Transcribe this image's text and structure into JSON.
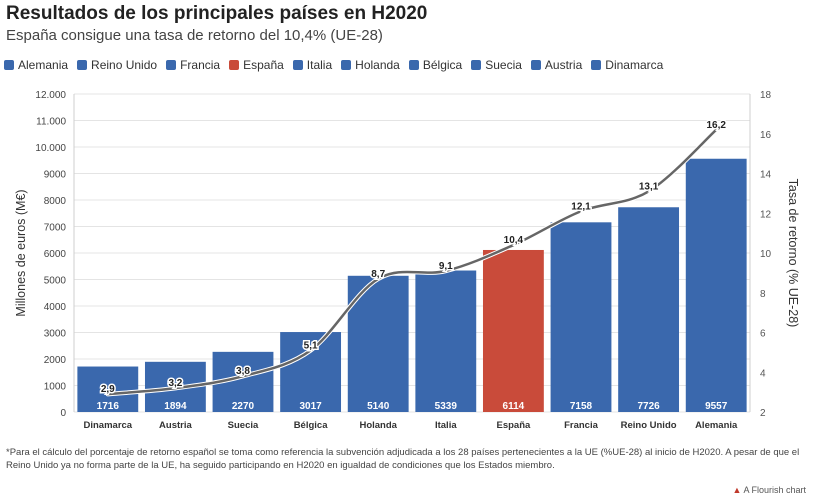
{
  "header": {
    "title": "Resultados de los principales países en H2020",
    "subtitle": "España consigue una tasa de retorno del 10,4% (UE-28)"
  },
  "legend": [
    {
      "label": "Alemania",
      "color": "#3a68ad"
    },
    {
      "label": "Reino Unido",
      "color": "#3a68ad"
    },
    {
      "label": "Francia",
      "color": "#3a68ad"
    },
    {
      "label": "España",
      "color": "#c94b3a"
    },
    {
      "label": "Italia",
      "color": "#3a68ad"
    },
    {
      "label": "Holanda",
      "color": "#3a68ad"
    },
    {
      "label": "Bélgica",
      "color": "#3a68ad"
    },
    {
      "label": "Suecia",
      "color": "#3a68ad"
    },
    {
      "label": "Austria",
      "color": "#3a68ad"
    },
    {
      "label": "Dinamarca",
      "color": "#3a68ad"
    }
  ],
  "chart_data": {
    "type": "bar",
    "categories": [
      "Dinamarca",
      "Austria",
      "Suecia",
      "Bélgica",
      "Holanda",
      "Italia",
      "España",
      "Francia",
      "Reino Unido",
      "Alemania"
    ],
    "values": [
      1716,
      1894,
      2270,
      3017,
      5140,
      5339,
      6114,
      7158,
      7726,
      9557
    ],
    "value_labels": [
      "1716",
      "1894",
      "2270",
      "3017",
      "5140",
      "5339",
      "6114",
      "7158",
      "7726",
      "9557"
    ],
    "bar_colors": [
      "#3a68ad",
      "#3a68ad",
      "#3a68ad",
      "#3a68ad",
      "#3a68ad",
      "#3a68ad",
      "#c94b3a",
      "#3a68ad",
      "#3a68ad",
      "#3a68ad"
    ],
    "line_series": {
      "values": [
        2.9,
        3.2,
        3.8,
        5.1,
        8.7,
        9.1,
        10.4,
        12.1,
        13.1,
        16.2
      ],
      "labels": [
        "2,9",
        "3,2",
        "3,8",
        "5,1",
        "8,7",
        "9,1",
        "10,4",
        "12,1",
        "13,1",
        "16,2"
      ],
      "color": "#666666"
    },
    "ylabel": "Millones de euros (M€)",
    "ylim": [
      0,
      12000
    ],
    "yticks": [
      0,
      1000,
      2000,
      3000,
      4000,
      5000,
      6000,
      7000,
      8000,
      9000,
      10000,
      11000,
      12000
    ],
    "ytick_labels": [
      "0",
      "1000",
      "2000",
      "3000",
      "4000",
      "5000",
      "6000",
      "7000",
      "8000",
      "9000",
      "10.000",
      "11.000",
      "12.000"
    ],
    "y2label": "Tasa de retorno (% UE-28)",
    "y2lim": [
      2,
      18
    ],
    "y2ticks": [
      2,
      4,
      6,
      8,
      10,
      12,
      14,
      16,
      18
    ],
    "y2tick_labels": [
      "2",
      "4",
      "6",
      "8",
      "10",
      "12",
      "14",
      "16",
      "18"
    ],
    "grid": true
  },
  "footnote": "*Para el cálculo del porcentaje de retorno español se toma como referencia la subvención adjudicada a los 28 países pertenecientes a la UE (%UE-28) al inicio de H2020. A pesar de que el Reino Unido ya no forma parte de la UE, ha seguido participando en H2020 en igualdad de condiciones que los Estados miembro.",
  "credit": {
    "mark": "▲",
    "text": "A Flourish chart"
  }
}
